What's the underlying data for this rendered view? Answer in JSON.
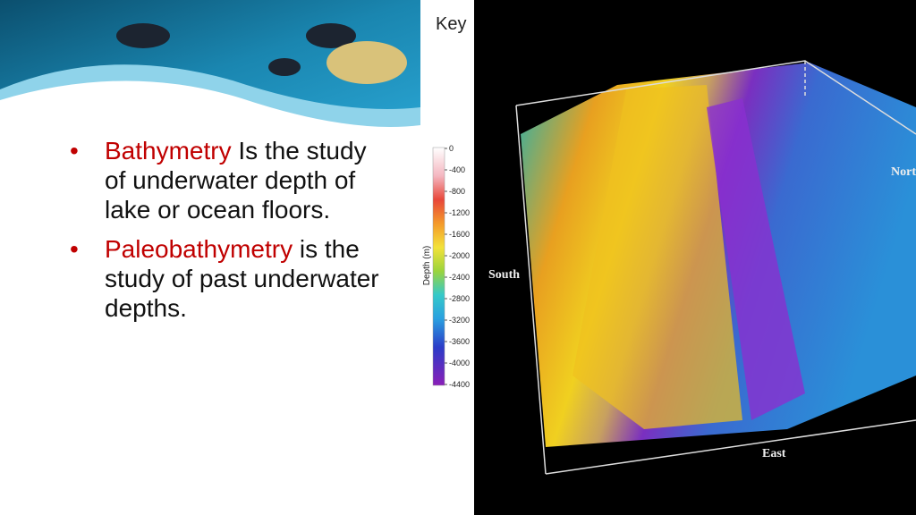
{
  "bullets": [
    {
      "term": "Bathymetry",
      "text": " Is the study of underwater depth of lake or ocean floors."
    },
    {
      "term": "Paleobathymetry",
      "text": " is the study of past underwater depths."
    }
  ],
  "key": {
    "title": "Key",
    "axis_label": "Depth (m)",
    "ticks": [
      0,
      -400,
      -800,
      -1200,
      -1600,
      -2000,
      -2400,
      -2800,
      -3200,
      -3600,
      -4000,
      -4400
    ]
  },
  "map": {
    "labels": {
      "south": "South",
      "north": "North",
      "east": "East"
    }
  }
}
